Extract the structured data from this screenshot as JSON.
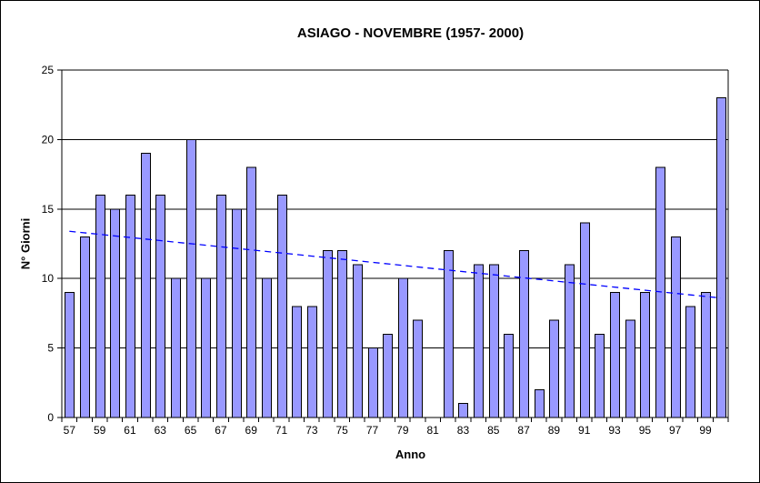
{
  "chart_data": {
    "type": "bar",
    "title": "ASIAGO - NOVEMBRE (1957- 2000)",
    "xlabel": "Anno",
    "ylabel": "N° Giorni",
    "ylim": [
      0,
      25
    ],
    "yticks": [
      0,
      5,
      10,
      15,
      20,
      25
    ],
    "grid": true,
    "legend": false,
    "years": [
      1957,
      1958,
      1959,
      1960,
      1961,
      1962,
      1963,
      1964,
      1965,
      1966,
      1967,
      1968,
      1969,
      1970,
      1971,
      1972,
      1973,
      1974,
      1975,
      1976,
      1977,
      1978,
      1979,
      1980,
      1981,
      1982,
      1983,
      1984,
      1985,
      1986,
      1987,
      1988,
      1989,
      1990,
      1991,
      1992,
      1993,
      1994,
      1995,
      1996,
      1997,
      1998,
      1999,
      2000
    ],
    "xtick_labels": [
      "57",
      "59",
      "61",
      "63",
      "65",
      "67",
      "69",
      "71",
      "73",
      "75",
      "77",
      "79",
      "81",
      "83",
      "85",
      "87",
      "89",
      "91",
      "93",
      "95",
      "97",
      "99"
    ],
    "values": [
      9,
      13,
      16,
      15,
      16,
      19,
      16,
      10,
      20,
      10,
      16,
      15,
      18,
      10,
      16,
      8,
      8,
      12,
      12,
      11,
      5,
      6,
      10,
      7,
      null,
      12,
      1,
      11,
      11,
      6,
      12,
      2,
      7,
      11,
      14,
      6,
      9,
      7,
      9,
      18,
      13,
      8,
      9,
      23
    ],
    "trendline": {
      "type": "linear",
      "style": "dashed",
      "color": "#0000ff",
      "start_value": 13.4,
      "end_value": 8.6
    },
    "colors": {
      "bar_fill": "#9999ff",
      "bar_border": "#000000",
      "gridline": "#000000",
      "axis": "#000000",
      "background": "#ffffff"
    }
  }
}
